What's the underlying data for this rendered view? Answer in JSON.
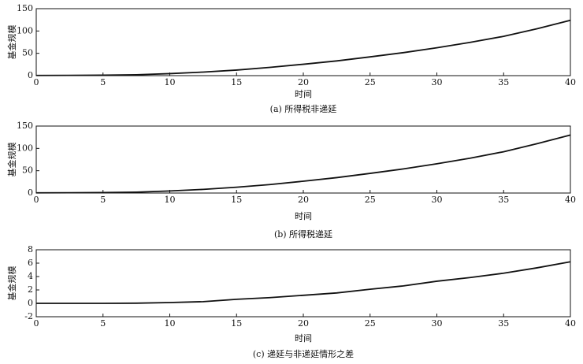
{
  "chart_data": [
    {
      "type": "line",
      "caption": "(a) 所得税非递延",
      "xlabel": "时间",
      "ylabel": "基金规模",
      "x": [
        0,
        2.5,
        5,
        7.5,
        10,
        12.5,
        15,
        17.5,
        20,
        22.5,
        25,
        27.5,
        30,
        32.5,
        35,
        37.5,
        40
      ],
      "series": [
        {
          "color": "#111111",
          "values": [
            0.5,
            0.6,
            1,
            2,
            4.5,
            8,
            12.5,
            18.5,
            25.5,
            33,
            42,
            51.5,
            62.5,
            74.5,
            88,
            105,
            124
          ]
        }
      ],
      "xlim": [
        0,
        40
      ],
      "xticks": [
        0,
        5,
        10,
        15,
        20,
        25,
        30,
        35,
        40
      ],
      "ylim": [
        0,
        150
      ],
      "yticks": [
        0,
        50,
        100,
        150
      ],
      "grid": false
    },
    {
      "type": "line",
      "caption": "(b) 所得税递延",
      "xlabel": "时间",
      "ylabel": "基金规模",
      "x": [
        0,
        2.5,
        5,
        7.5,
        10,
        12.5,
        15,
        17.5,
        20,
        22.5,
        25,
        27.5,
        30,
        32.5,
        35,
        37.5,
        40
      ],
      "series": [
        {
          "color": "#111111",
          "values": [
            0.5,
            0.6,
            1,
            2,
            4.6,
            8.2,
            13,
            19,
            26.5,
            34.5,
            44,
            54,
            65.5,
            78,
            92.5,
            110.5,
            130
          ]
        }
      ],
      "xlim": [
        0,
        40
      ],
      "xticks": [
        0,
        5,
        10,
        15,
        20,
        25,
        30,
        35,
        40
      ],
      "ylim": [
        0,
        150
      ],
      "yticks": [
        0,
        50,
        100,
        150
      ],
      "grid": false
    },
    {
      "type": "line",
      "caption": "(c) 递延与非递延情形之差",
      "xlabel": "时间",
      "ylabel": "基金规模",
      "x": [
        0,
        2.5,
        5,
        7.5,
        10,
        12.5,
        15,
        17.5,
        20,
        22.5,
        25,
        27.5,
        30,
        32.5,
        35,
        37.5,
        40
      ],
      "series": [
        {
          "color": "#111111",
          "values": [
            0,
            0,
            0,
            0.02,
            0.12,
            0.25,
            0.6,
            0.85,
            1.2,
            1.55,
            2.1,
            2.6,
            3.3,
            3.85,
            4.5,
            5.3,
            6.2
          ]
        }
      ],
      "xlim": [
        0,
        40
      ],
      "xticks": [
        0,
        5,
        10,
        15,
        20,
        25,
        30,
        35,
        40
      ],
      "ylim": [
        -2,
        8
      ],
      "yticks": [
        -2,
        0,
        2,
        4,
        6,
        8
      ],
      "grid": false
    }
  ]
}
